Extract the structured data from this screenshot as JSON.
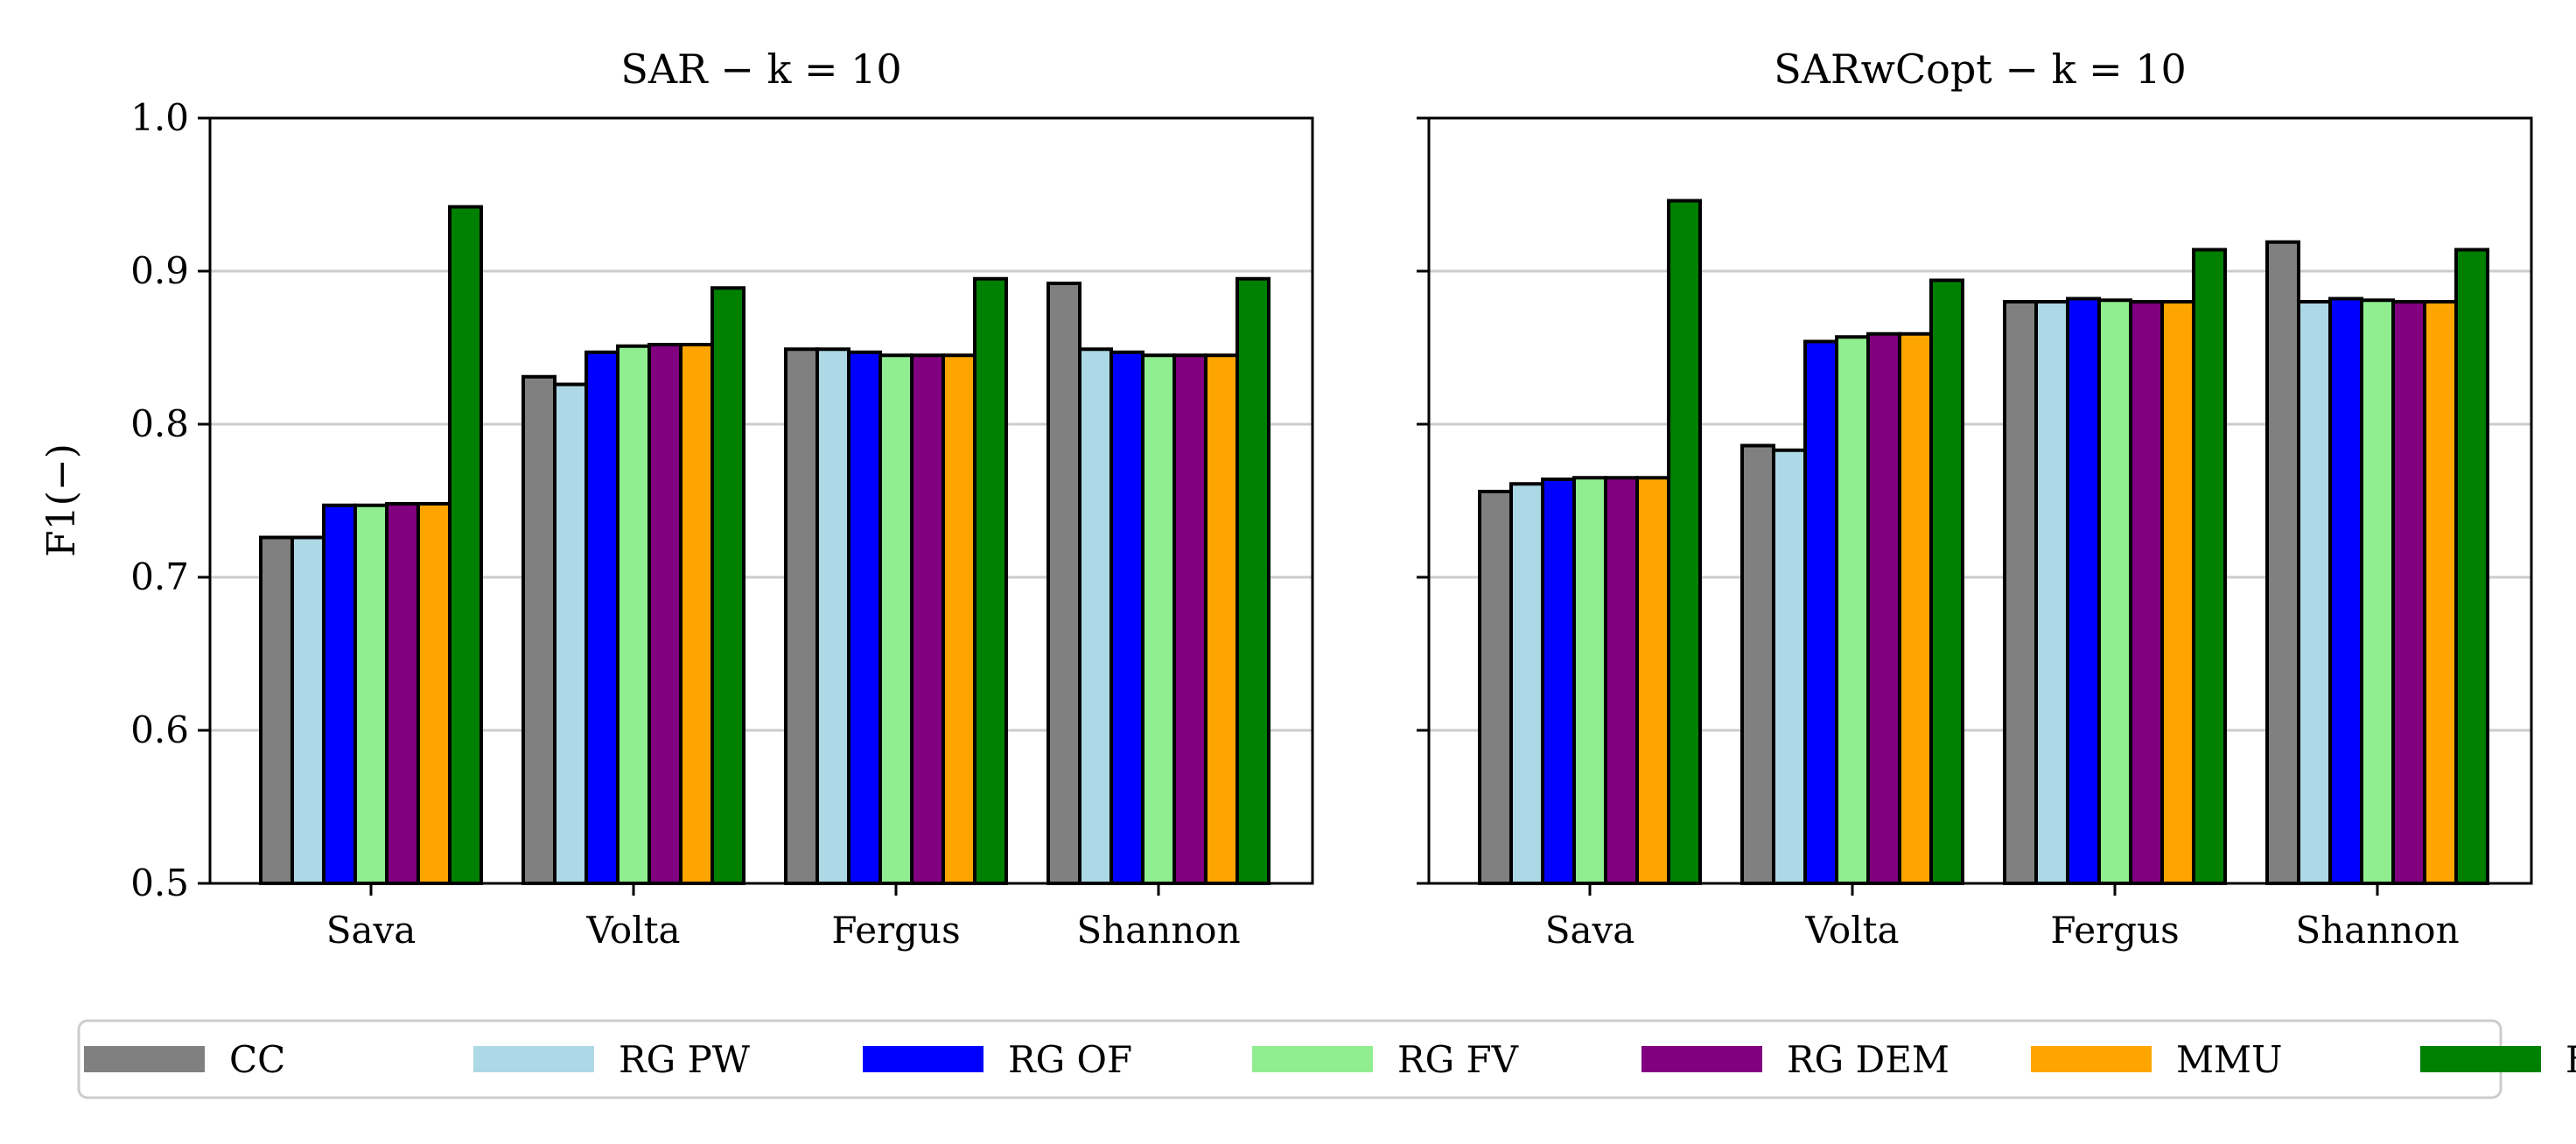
{
  "chart_data": [
    {
      "type": "bar",
      "title": "SAR − k = 10",
      "xlabel": "",
      "ylabel": "F1(−)",
      "ylim": [
        0.5,
        1.0
      ],
      "yticks": [
        "0.5",
        "0.6",
        "0.7",
        "0.8",
        "0.9",
        "1.0"
      ],
      "grid": "horizontal",
      "categories": [
        "Sava",
        "Volta",
        "Fergus",
        "Shannon"
      ],
      "series": [
        {
          "name": "CC",
          "values": [
            0.726,
            0.831,
            0.849,
            0.892
          ]
        },
        {
          "name": "RG PW",
          "values": [
            0.726,
            0.826,
            0.849,
            0.849
          ]
        },
        {
          "name": "RG OF",
          "values": [
            0.747,
            0.847,
            0.847,
            0.847
          ]
        },
        {
          "name": "RG FV",
          "values": [
            0.747,
            0.851,
            0.845,
            0.845
          ]
        },
        {
          "name": "RG DEM",
          "values": [
            0.748,
            0.852,
            0.845,
            0.845
          ]
        },
        {
          "name": "MMU",
          "values": [
            0.748,
            0.852,
            0.845,
            0.845
          ]
        },
        {
          "name": "FA",
          "values": [
            0.942,
            0.889,
            0.895,
            0.895
          ]
        }
      ]
    },
    {
      "type": "bar",
      "title": "SARwCopt − k = 10",
      "xlabel": "",
      "ylabel": "",
      "ylim": [
        0.5,
        1.0
      ],
      "grid": "horizontal",
      "categories": [
        "Sava",
        "Volta",
        "Fergus",
        "Shannon"
      ],
      "series": [
        {
          "name": "CC",
          "values": [
            0.756,
            0.786,
            0.88,
            0.919
          ]
        },
        {
          "name": "RG PW",
          "values": [
            0.761,
            0.783,
            0.88,
            0.88
          ]
        },
        {
          "name": "RG OF",
          "values": [
            0.764,
            0.854,
            0.882,
            0.882
          ]
        },
        {
          "name": "RG FV",
          "values": [
            0.765,
            0.857,
            0.881,
            0.881
          ]
        },
        {
          "name": "RG DEM",
          "values": [
            0.765,
            0.859,
            0.88,
            0.88
          ]
        },
        {
          "name": "MMU",
          "values": [
            0.765,
            0.859,
            0.88,
            0.88
          ]
        },
        {
          "name": "FA",
          "values": [
            0.946,
            0.894,
            0.914,
            0.914
          ]
        }
      ]
    }
  ],
  "legend": {
    "placement": "bottom",
    "items": [
      {
        "label": "CC",
        "color": "#808080"
      },
      {
        "label": "RG PW",
        "color": "#add8e6"
      },
      {
        "label": "RG OF",
        "color": "#0000ff"
      },
      {
        "label": "RG FV",
        "color": "#90ee90"
      },
      {
        "label": "RG DEM",
        "color": "#800080"
      },
      {
        "label": "MMU",
        "color": "#ffa500"
      },
      {
        "label": "FA",
        "color": "#008000"
      }
    ]
  }
}
